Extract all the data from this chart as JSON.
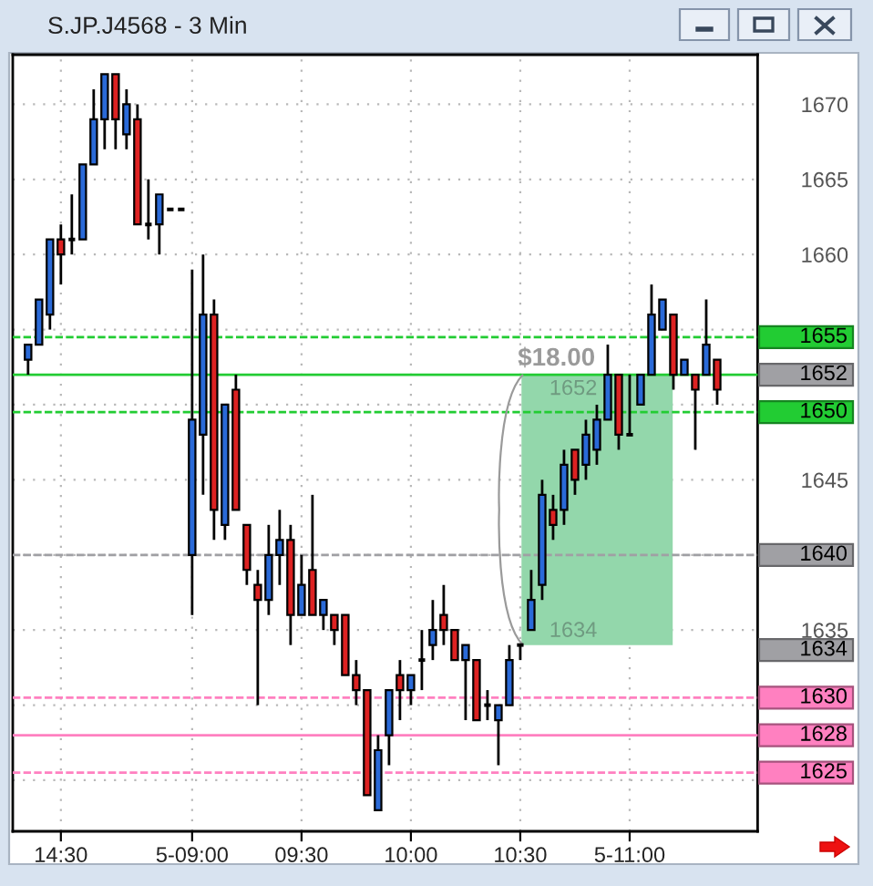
{
  "chart_data": {
    "type": "candlestick",
    "title": "S.JP.J4568 - 3 Min",
    "categories": [
      null,
      null,
      null,
      "14:30",
      null,
      null,
      null,
      null,
      null,
      null,
      null,
      null,
      null,
      null,
      null,
      "5-09:00",
      null,
      null,
      null,
      null,
      null,
      null,
      null,
      null,
      null,
      "09:30",
      null,
      null,
      null,
      null,
      null,
      null,
      null,
      null,
      null,
      "10:00",
      null,
      null,
      null,
      null,
      null,
      null,
      null,
      null,
      null,
      "10:30",
      null,
      null,
      null,
      null,
      null,
      null,
      null,
      null,
      null,
      "5-11:00",
      null,
      null,
      null,
      null,
      null,
      null,
      null,
      null
    ],
    "ohlc": [
      [
        1653,
        1654,
        1652,
        1654
      ],
      [
        1654,
        1657,
        1654,
        1657
      ],
      [
        1656,
        1661,
        1655,
        1661
      ],
      [
        1661,
        1662,
        1658,
        1660
      ],
      [
        1661,
        1664,
        1660,
        1661
      ],
      [
        1661,
        1666,
        1661,
        1666
      ],
      [
        1666,
        1671,
        1666,
        1669
      ],
      [
        1669,
        1672,
        1667,
        1672
      ],
      [
        1672,
        1672,
        1667,
        1669
      ],
      [
        1668,
        1671,
        1667,
        1670
      ],
      [
        1669,
        1670,
        1662,
        1662
      ],
      [
        1662,
        1665,
        1661,
        1662
      ],
      [
        1662,
        1664,
        1660,
        1664
      ],
      [
        1663,
        1663,
        1663,
        1663
      ],
      [
        1663,
        1663,
        1663,
        1663
      ],
      [
        1640,
        1659,
        1636,
        1649
      ],
      [
        1648,
        1660,
        1644,
        1656
      ],
      [
        1656,
        1657,
        1641,
        1643
      ],
      [
        1642,
        1650,
        1641,
        1650
      ],
      [
        1651,
        1652,
        1643,
        1643
      ],
      [
        1642,
        1642,
        1638,
        1639
      ],
      [
        1638,
        1639,
        1630,
        1637
      ],
      [
        1637,
        1642,
        1636,
        1640
      ],
      [
        1640,
        1643,
        1638,
        1641
      ],
      [
        1641,
        1642,
        1634,
        1636
      ],
      [
        1636,
        1640,
        1636,
        1638
      ],
      [
        1639,
        1644,
        1636,
        1636
      ],
      [
        1636,
        1637,
        1635,
        1637
      ],
      [
        1636,
        1636,
        1634,
        1635
      ],
      [
        1636,
        1636,
        1632,
        1632
      ],
      [
        1632,
        1633,
        1630,
        1631
      ],
      [
        1631,
        1631,
        1624,
        1624
      ],
      [
        1623,
        1628,
        1623,
        1627
      ],
      [
        1628,
        1631,
        1626,
        1631
      ],
      [
        1632,
        1633,
        1629,
        1631
      ],
      [
        1631,
        1632,
        1630,
        1632
      ],
      [
        1633,
        1635,
        1631,
        1633
      ],
      [
        1634,
        1637,
        1633,
        1635
      ],
      [
        1636,
        1638,
        1634,
        1635
      ],
      [
        1635,
        1635,
        1633,
        1633
      ],
      [
        1633,
        1634,
        1629,
        1634
      ],
      [
        1633,
        1633,
        1629,
        1629
      ],
      [
        1630,
        1631,
        1629,
        1630
      ],
      [
        1629,
        1630,
        1626,
        1630
      ],
      [
        1630,
        1634,
        1630,
        1633
      ],
      [
        1634,
        1634,
        1633,
        1634
      ],
      [
        1635,
        1639,
        1635,
        1637
      ],
      [
        1638,
        1645,
        1637,
        1644
      ],
      [
        1643,
        1644,
        1641,
        1642
      ],
      [
        1643,
        1647,
        1642,
        1646
      ],
      [
        1647,
        1647,
        1644,
        1645
      ],
      [
        1646,
        1649,
        1645,
        1648
      ],
      [
        1647,
        1650,
        1646,
        1649
      ],
      [
        1649,
        1654,
        1649,
        1652
      ],
      [
        1652,
        1652,
        1647,
        1648
      ],
      [
        1648,
        1652,
        1648,
        1648
      ],
      [
        1650,
        1652,
        1650,
        1652
      ],
      [
        1652,
        1658,
        1652,
        1656
      ],
      [
        1655,
        1657,
        1655,
        1657
      ],
      [
        1656,
        1656,
        1651,
        1652
      ],
      [
        1652,
        1653,
        1652,
        1653
      ],
      [
        1652,
        1652,
        1647,
        1651
      ],
      [
        1652,
        1657,
        1652,
        1654
      ],
      [
        1653,
        1653,
        1650,
        1651
      ]
    ],
    "colors": [
      "#2a6ad8",
      "#2a6ad8",
      "#2a6ad8",
      "#dd2222",
      "#000000",
      "#2a6ad8",
      "#2a6ad8",
      "#2a6ad8",
      "#dd2222",
      "#2a6ad8",
      "#dd2222",
      "#000000",
      "#2a6ad8",
      "#000000",
      "#000000",
      "#2a6ad8",
      "#2a6ad8",
      "#dd2222",
      "#2a6ad8",
      "#dd2222",
      "#dd2222",
      "#dd2222",
      "#2a6ad8",
      "#2a6ad8",
      "#dd2222",
      "#2a6ad8",
      "#dd2222",
      "#2a6ad8",
      "#dd2222",
      "#dd2222",
      "#dd2222",
      "#dd2222",
      "#2a6ad8",
      "#2a6ad8",
      "#dd2222",
      "#2a6ad8",
      "#000000",
      "#2a6ad8",
      "#dd2222",
      "#dd2222",
      "#2a6ad8",
      "#dd2222",
      "#000000",
      "#2a6ad8",
      "#2a6ad8",
      "#000000",
      "#2a6ad8",
      "#2a6ad8",
      "#dd2222",
      "#2a6ad8",
      "#dd2222",
      "#2a6ad8",
      "#2a6ad8",
      "#2a6ad8",
      "#dd2222",
      "#000000",
      "#2a6ad8",
      "#2a6ad8",
      "#2a6ad8",
      "#dd2222",
      "#2a6ad8",
      "#dd2222",
      "#2a6ad8",
      "#dd2222"
    ],
    "ylim": [
      1621.6,
      1673.3
    ],
    "yticks": [
      {
        "value": 1625,
        "label": null
      },
      {
        "value": 1630,
        "label": null
      },
      1635,
      {
        "value": 1640,
        "label": null
      },
      1645,
      {
        "value": 1650,
        "label": null
      },
      {
        "value": 1655,
        "label": null
      },
      1660,
      1665,
      1670
    ],
    "grid": true,
    "ref_lines": [
      {
        "axis": "y",
        "value": 1654.5,
        "label": "1655",
        "color": "#22cc33",
        "line_style": "dashed"
      },
      {
        "axis": "y",
        "value": 1652,
        "color": "#22cc33",
        "line_style": "solid"
      },
      {
        "axis": "y",
        "value": 1649.5,
        "label": "1650",
        "color": "#22cc33",
        "line_style": "dashed"
      },
      {
        "axis": "y",
        "value": 1640,
        "label": "1640",
        "color": "#a0a0a4",
        "line_style": "dashed"
      },
      {
        "axis": "y",
        "value": 1630.5,
        "label": "1630",
        "color": "#ff80c0",
        "line_style": "dashed"
      },
      {
        "axis": "y",
        "value": 1628,
        "label": "1628",
        "color": "#ff80c0",
        "line_style": "solid"
      },
      {
        "axis": "y",
        "value": 1625.5,
        "label": "1625",
        "color": "#ff80c0",
        "line_style": "dashed"
      }
    ],
    "bands": [
      {
        "axis": "y",
        "from": 1634,
        "to": 1652,
        "label": "$18.00",
        "color": "#93d7ab"
      }
    ],
    "annotations": [
      "1652",
      "1634"
    ]
  }
}
